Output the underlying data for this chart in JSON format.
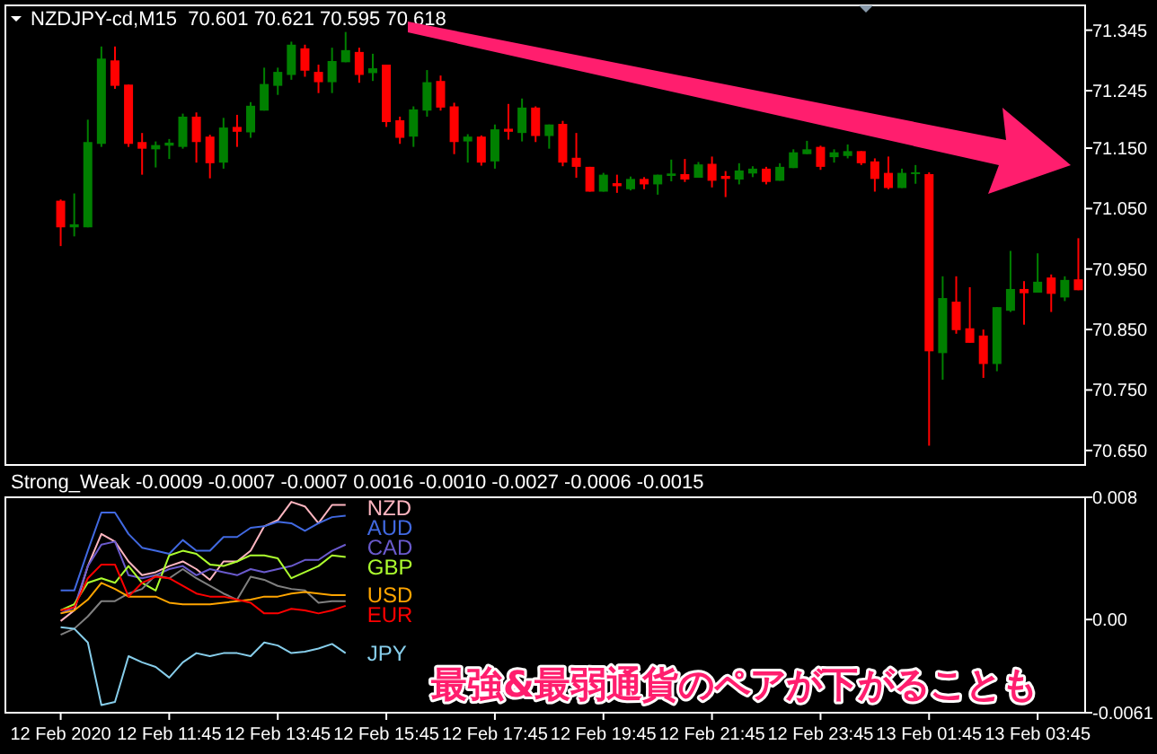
{
  "chart_data": [
    {
      "type": "candlestick",
      "title": "NZDJPY-cd,M15  70.601 70.621 70.595 70.618",
      "categories": [
        null,
        null,
        null,
        null,
        null,
        null,
        null,
        null,
        null,
        null,
        null,
        null,
        null,
        null,
        null,
        null,
        null,
        null,
        null,
        null,
        null,
        null,
        null,
        null,
        null,
        null,
        null,
        null,
        null,
        null,
        null,
        null,
        null,
        null,
        null,
        null,
        null,
        null,
        null,
        null,
        null,
        null,
        null,
        null,
        null,
        null,
        null,
        null,
        null,
        null,
        null,
        null,
        null,
        null,
        null,
        null,
        null,
        null,
        null,
        null,
        null,
        null,
        null,
        null,
        null,
        null,
        null,
        null,
        null,
        null,
        null,
        null,
        null,
        null,
        null,
        null
      ],
      "ohlc": [
        [
          71.063,
          71.065,
          70.988,
          71.019
        ],
        [
          71.019,
          71.075,
          71.004,
          71.024
        ],
        [
          71.019,
          71.197,
          71.019,
          71.16
        ],
        [
          71.157,
          71.318,
          71.152,
          71.298
        ],
        [
          71.295,
          71.318,
          71.248,
          71.253
        ],
        [
          71.255,
          71.255,
          71.152,
          71.157
        ],
        [
          71.16,
          71.175,
          71.106,
          71.149
        ],
        [
          71.148,
          71.161,
          71.118,
          71.155
        ],
        [
          71.154,
          71.165,
          71.132,
          71.159
        ],
        [
          71.152,
          71.207,
          71.149,
          71.202
        ],
        [
          71.202,
          71.209,
          71.126,
          71.16
        ],
        [
          71.169,
          71.172,
          71.1,
          71.125
        ],
        [
          71.126,
          71.2,
          71.116,
          71.184
        ],
        [
          71.185,
          71.205,
          71.152,
          71.177
        ],
        [
          71.176,
          71.226,
          71.167,
          71.22
        ],
        [
          71.212,
          71.283,
          71.212,
          71.256
        ],
        [
          71.253,
          71.283,
          71.238,
          71.276
        ],
        [
          71.271,
          71.326,
          71.263,
          71.321
        ],
        [
          71.315,
          71.321,
          71.268,
          71.278
        ],
        [
          71.276,
          71.288,
          71.241,
          71.259
        ],
        [
          71.259,
          71.316,
          71.241,
          71.294
        ],
        [
          71.292,
          71.342,
          71.292,
          71.312
        ],
        [
          71.309,
          71.316,
          71.258,
          71.271
        ],
        [
          71.274,
          71.306,
          71.261,
          71.282
        ],
        [
          71.288,
          71.288,
          71.185,
          71.193
        ],
        [
          71.196,
          71.202,
          71.157,
          71.167
        ],
        [
          71.169,
          71.219,
          71.152,
          71.214
        ],
        [
          71.212,
          71.279,
          71.202,
          71.259
        ],
        [
          71.261,
          71.27,
          71.212,
          71.217
        ],
        [
          71.219,
          71.225,
          71.14,
          71.16
        ],
        [
          71.161,
          71.173,
          71.126,
          71.169
        ],
        [
          71.169,
          71.171,
          71.121,
          71.126
        ],
        [
          71.128,
          71.189,
          71.116,
          71.181
        ],
        [
          71.182,
          71.223,
          71.164,
          71.177
        ],
        [
          71.175,
          71.232,
          71.161,
          71.217
        ],
        [
          71.217,
          71.219,
          71.16,
          71.17
        ],
        [
          71.17,
          71.189,
          71.149,
          71.189
        ],
        [
          71.19,
          71.195,
          71.12,
          71.126
        ],
        [
          71.134,
          71.175,
          71.101,
          71.119
        ],
        [
          71.119,
          71.119,
          71.078,
          71.078
        ],
        [
          71.078,
          71.109,
          71.078,
          71.106
        ],
        [
          71.092,
          71.106,
          71.076,
          71.087
        ],
        [
          71.082,
          71.103,
          71.08,
          71.099
        ],
        [
          71.099,
          71.102,
          71.082,
          71.09
        ],
        [
          71.09,
          71.106,
          71.073,
          71.106
        ],
        [
          71.104,
          71.131,
          71.095,
          71.108
        ],
        [
          71.107,
          71.132,
          71.094,
          71.098
        ],
        [
          71.101,
          71.127,
          71.101,
          71.123
        ],
        [
          71.124,
          71.136,
          71.085,
          71.096
        ],
        [
          71.104,
          71.112,
          71.069,
          71.099
        ],
        [
          71.098,
          71.125,
          71.09,
          71.113
        ],
        [
          71.108,
          71.12,
          71.102,
          71.116
        ],
        [
          71.116,
          71.119,
          71.09,
          71.094
        ],
        [
          71.096,
          71.125,
          71.096,
          71.119
        ],
        [
          71.117,
          71.148,
          71.117,
          71.143
        ],
        [
          71.14,
          71.162,
          71.14,
          71.148
        ],
        [
          71.152,
          71.154,
          71.114,
          71.119
        ],
        [
          71.135,
          71.148,
          71.126,
          71.143
        ],
        [
          71.137,
          71.156,
          71.133,
          71.145
        ],
        [
          71.145,
          71.145,
          71.122,
          71.125
        ],
        [
          71.128,
          71.133,
          71.078,
          71.099
        ],
        [
          71.109,
          71.136,
          71.082,
          71.084
        ],
        [
          71.084,
          71.116,
          71.084,
          71.109
        ],
        [
          71.108,
          71.122,
          71.091,
          71.11
        ],
        [
          71.107,
          71.11,
          70.658,
          70.814
        ],
        [
          70.811,
          70.938,
          70.767,
          70.902
        ],
        [
          70.896,
          70.938,
          70.843,
          70.849
        ],
        [
          70.852,
          70.92,
          70.828,
          70.828
        ],
        [
          70.84,
          70.85,
          70.77,
          70.793
        ],
        [
          70.793,
          70.887,
          70.781,
          70.887
        ],
        [
          70.881,
          70.98,
          70.879,
          70.917
        ],
        [
          70.917,
          70.93,
          70.858,
          70.91
        ],
        [
          70.911,
          70.976,
          70.911,
          70.929
        ],
        [
          70.936,
          70.941,
          70.879,
          70.909
        ],
        [
          70.903,
          70.938,
          70.897,
          70.932
        ],
        [
          70.933,
          71.001,
          70.915,
          70.915
        ]
      ],
      "colors": [
        "#ff0000",
        "#008000",
        "#008000",
        "#008000",
        "#ff0000",
        "#ff0000",
        "#ff0000",
        "#008000",
        "#008000",
        "#008000",
        "#ff0000",
        "#ff0000",
        "#008000",
        "#ff0000",
        "#008000",
        "#008000",
        "#008000",
        "#008000",
        "#ff0000",
        "#ff0000",
        "#008000",
        "#008000",
        "#ff0000",
        "#008000",
        "#ff0000",
        "#ff0000",
        "#008000",
        "#008000",
        "#ff0000",
        "#ff0000",
        "#008000",
        "#ff0000",
        "#008000",
        "#ff0000",
        "#008000",
        "#ff0000",
        "#008000",
        "#ff0000",
        "#ff0000",
        "#ff0000",
        "#008000",
        "#ff0000",
        "#008000",
        "#ff0000",
        "#008000",
        "#008000",
        "#ff0000",
        "#008000",
        "#ff0000",
        "#ff0000",
        "#008000",
        "#008000",
        "#ff0000",
        "#008000",
        "#008000",
        "#008000",
        "#ff0000",
        "#008000",
        "#008000",
        "#ff0000",
        "#ff0000",
        "#ff0000",
        "#008000",
        "#008000",
        "#ff0000",
        "#008000",
        "#ff0000",
        "#ff0000",
        "#ff0000",
        "#008000",
        "#008000",
        "#ff0000",
        "#008000",
        "#ff0000",
        "#008000",
        "#ff0000"
      ],
      "ylim": [
        70.626,
        71.386
      ],
      "yticks": [
        71.345,
        71.245,
        {
          "value": 71.15,
          "label": "71.150"
        },
        {
          "value": 71.05,
          "label": "71.050"
        },
        {
          "value": 70.95,
          "label": "70.950"
        },
        {
          "value": 70.85,
          "label": "70.850"
        },
        {
          "value": 70.75,
          "label": "70.750"
        },
        {
          "value": 70.65,
          "label": "70.650"
        }
      ]
    },
    {
      "type": "line",
      "title": "Strong_Weak -0.0009 -0.0007 -0.0007 0.0016 -0.0010 -0.0027 -0.0006 -0.0015",
      "categories": [
        "12 Feb 2020",
        null,
        null,
        null,
        null,
        null,
        null,
        null,
        "12 Feb 11:45",
        null,
        null,
        null,
        null,
        null,
        null,
        null,
        "12 Feb 13:45",
        null,
        null,
        null,
        null,
        null,
        null,
        null,
        "12 Feb 15:45",
        null,
        null,
        null,
        null,
        null,
        null,
        null,
        "12 Feb 17:45",
        null,
        null,
        null,
        null,
        null,
        null,
        null,
        "12 Feb 19:45",
        null,
        null,
        null,
        null,
        null,
        null,
        null,
        "12 Feb 21:45",
        null,
        null,
        null,
        null,
        null,
        null,
        null,
        "12 Feb 23:45",
        null,
        null,
        null,
        null,
        null,
        null,
        null,
        "13 Feb 01:45",
        null,
        null,
        null,
        null,
        null,
        null,
        null,
        "13 Feb 03:45",
        null,
        null,
        null
      ],
      "series": [
        {
          "name": "NZD",
          "color": "#ffb6c1",
          "values": [
            -0.0001,
            0.0006,
            0.0035,
            0.0056,
            0.0051,
            0.0038,
            0.0029,
            0.0031,
            0.0035,
            0.0038,
            0.0033,
            0.0026,
            0.0038,
            0.0038,
            0.0045,
            0.0061,
            0.0065,
            0.0077,
            0.0074,
            0.0063,
            0.0075,
            0.0075,
            null,
            null,
            null,
            null,
            null,
            null,
            null,
            null,
            null,
            null,
            null,
            null,
            null,
            null,
            null,
            null,
            null,
            null,
            null,
            null,
            null,
            null,
            null,
            null,
            null,
            null,
            null,
            null,
            null,
            null,
            null,
            null,
            null,
            null,
            null,
            null,
            null,
            null,
            null,
            null,
            null,
            null,
            null,
            null,
            null,
            null,
            null,
            null,
            null,
            null,
            null,
            null,
            null,
            null
          ]
        },
        {
          "name": "AUD",
          "color": "#4169e1",
          "values": [
            0.0019,
            0.0019,
            0.0045,
            0.007,
            0.007,
            0.0056,
            0.0047,
            0.0045,
            0.0043,
            0.0052,
            0.0045,
            0.0045,
            0.0054,
            0.0054,
            0.006,
            0.0061,
            0.0064,
            0.0063,
            0.0058,
            0.0063,
            0.0067,
            0.0068,
            null,
            null,
            null,
            null,
            null,
            null,
            null,
            null,
            null,
            null,
            null,
            null,
            null,
            null,
            null,
            null,
            null,
            null,
            null,
            null,
            null,
            null,
            null,
            null,
            null,
            null,
            null,
            null,
            null,
            null,
            null,
            null,
            null,
            null,
            null,
            null,
            null,
            null,
            null,
            null,
            null,
            null,
            null,
            null,
            null,
            null,
            null,
            null,
            null,
            null,
            null,
            null,
            null,
            null
          ]
        },
        {
          "name": "CAD",
          "color": "#6a5acd",
          "values": [
            0.0004,
            0.0008,
            0.0035,
            0.0049,
            0.0051,
            0.0029,
            0.0027,
            0.0029,
            0.0033,
            0.0035,
            0.0029,
            0.0033,
            0.0031,
            0.0029,
            0.0033,
            0.0031,
            0.0033,
            0.0035,
            0.0039,
            0.0039,
            0.0045,
            0.0049,
            null,
            null,
            null,
            null,
            null,
            null,
            null,
            null,
            null,
            null,
            null,
            null,
            null,
            null,
            null,
            null,
            null,
            null,
            null,
            null,
            null,
            null,
            null,
            null,
            null,
            null,
            null,
            null,
            null,
            null,
            null,
            null,
            null,
            null,
            null,
            null,
            null,
            null,
            null,
            null,
            null,
            null,
            null,
            null,
            null,
            null,
            null,
            null,
            null,
            null,
            null,
            null,
            null,
            null
          ]
        },
        {
          "name": "GBP",
          "color": "#adff2f",
          "values": [
            0.0006,
            0.001,
            0.0024,
            0.0027,
            0.0024,
            0.0035,
            0.0024,
            0.0019,
            0.0042,
            0.0045,
            0.0043,
            0.0036,
            0.0035,
            0.0038,
            0.0042,
            0.0042,
            0.004,
            0.0027,
            0.0031,
            0.0035,
            0.0042,
            0.0041,
            null,
            null,
            null,
            null,
            null,
            null,
            null,
            null,
            null,
            null,
            null,
            null,
            null,
            null,
            null,
            null,
            null,
            null,
            null,
            null,
            null,
            null,
            null,
            null,
            null,
            null,
            null,
            null,
            null,
            null,
            null,
            null,
            null,
            null,
            null,
            null,
            null,
            null,
            null,
            null,
            null,
            null,
            null,
            null,
            null,
            null,
            null,
            null,
            null,
            null,
            null,
            null,
            null,
            null
          ]
        },
        {
          "color": "#808080",
          "values": [
            -0.001,
            -0.0006,
            0.0002,
            0.0012,
            0.0012,
            0.0017,
            0.002,
            0.0029,
            0.0027,
            0.0033,
            0.0027,
            0.0022,
            0.0017,
            0.0013,
            0.0028,
            0.0026,
            0.0022,
            0.002,
            0.0019,
            0.0011,
            0.0012,
            0.0012,
            null,
            null,
            null,
            null,
            null,
            null,
            null,
            null,
            null,
            null,
            null,
            null,
            null,
            null,
            null,
            null,
            null,
            null,
            null,
            null,
            null,
            null,
            null,
            null,
            null,
            null,
            null,
            null,
            null,
            null,
            null,
            null,
            null,
            null,
            null,
            null,
            null,
            null,
            null,
            null,
            null,
            null,
            null,
            null,
            null,
            null,
            null,
            null,
            null,
            null,
            null,
            null,
            null,
            null
          ]
        },
        {
          "name": "USD",
          "color": "#ffa500",
          "values": [
            0.0004,
            0.0006,
            0.0013,
            0.0024,
            0.002,
            0.0015,
            0.0015,
            0.0015,
            0.0011,
            0.001,
            0.001,
            0.001,
            0.0011,
            0.0012,
            0.0013,
            0.0015,
            0.0015,
            0.0017,
            0.0018,
            0.0017,
            0.0016,
            0.0016,
            null,
            null,
            null,
            null,
            null,
            null,
            null,
            null,
            null,
            null,
            null,
            null,
            null,
            null,
            null,
            null,
            null,
            null,
            null,
            null,
            null,
            null,
            null,
            null,
            null,
            null,
            null,
            null,
            null,
            null,
            null,
            null,
            null,
            null,
            null,
            null,
            null,
            null,
            null,
            null,
            null,
            null,
            null,
            null,
            null,
            null,
            null,
            null,
            null,
            null,
            null,
            null,
            null,
            null
          ]
        },
        {
          "name": "EUR",
          "color": "#ff0000",
          "values": [
            0.0006,
            0.0008,
            0.0027,
            0.0036,
            0.0036,
            0.0015,
            0.0024,
            0.0028,
            0.0027,
            0.0022,
            0.0017,
            0.0015,
            0.0015,
            0.0013,
            0.0011,
            0.0004,
            0.0004,
            0.0007,
            0.0006,
            0.0004,
            0.0006,
            0.0009,
            null,
            null,
            null,
            null,
            null,
            null,
            null,
            null,
            null,
            null,
            null,
            null,
            null,
            null,
            null,
            null,
            null,
            null,
            null,
            null,
            null,
            null,
            null,
            null,
            null,
            null,
            null,
            null,
            null,
            null,
            null,
            null,
            null,
            null,
            null,
            null,
            null,
            null,
            null,
            null,
            null,
            null,
            null,
            null,
            null,
            null,
            null,
            null,
            null,
            null,
            null,
            null,
            null,
            null
          ]
        },
        {
          "name": "JPY",
          "color": "#87ceeb",
          "values": [
            -0.0005,
            -0.0006,
            -0.0015,
            -0.0056,
            -0.0054,
            -0.0024,
            -0.0028,
            -0.0031,
            -0.0038,
            -0.0028,
            -0.0022,
            -0.0024,
            -0.0022,
            -0.0022,
            -0.0024,
            -0.0015,
            -0.0017,
            -0.0022,
            -0.0021,
            -0.0019,
            -0.0016,
            -0.0022,
            null,
            null,
            null,
            null,
            null,
            null,
            null,
            null,
            null,
            null,
            null,
            null,
            null,
            null,
            null,
            null,
            null,
            null,
            null,
            null,
            null,
            null,
            null,
            null,
            null,
            null,
            null,
            null,
            null,
            null,
            null,
            null,
            null,
            null,
            null,
            null,
            null,
            null,
            null,
            null,
            null,
            null,
            null,
            null,
            null,
            null,
            null,
            null,
            null,
            null,
            null,
            null,
            null,
            null
          ]
        }
      ],
      "ylim": [
        -0.0061,
        0.008
      ],
      "yticks": [
        0.008,
        {
          "value": 0,
          "label": "0.00"
        },
        -0.0061
      ],
      "annotations": [
        "最強&最弱通貨のペアが下がることも"
      ]
    }
  ]
}
